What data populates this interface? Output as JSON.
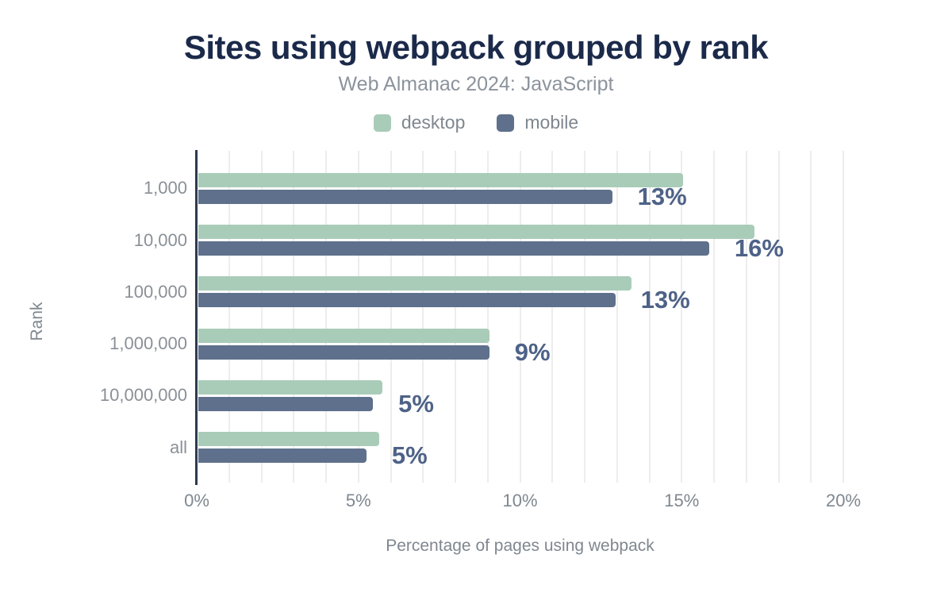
{
  "title": "Sites using webpack grouped by rank",
  "subtitle": "Web Almanac 2024: JavaScript",
  "chart_data": {
    "type": "bar",
    "orientation": "horizontal",
    "title": "Sites using webpack grouped by rank",
    "subtitle": "Web Almanac 2024: JavaScript",
    "categories": [
      "1,000",
      "10,000",
      "100,000",
      "1,000,000",
      "10,000,000",
      "all"
    ],
    "series": [
      {
        "name": "desktop",
        "color": "#a9ccb9",
        "values": [
          15.0,
          17.2,
          13.4,
          9.0,
          5.7,
          5.6
        ]
      },
      {
        "name": "mobile",
        "color": "#5e708b",
        "values": [
          12.8,
          15.8,
          12.9,
          9.0,
          5.4,
          5.2
        ]
      }
    ],
    "data_labels": [
      "13%",
      "16%",
      "13%",
      "9%",
      "5%",
      "5%"
    ],
    "data_labels_series": "mobile",
    "xlabel": "Percentage of pages using webpack",
    "ylabel": "Rank",
    "xlim": [
      0,
      20
    ],
    "x_ticks": [
      "0%",
      "5%",
      "10%",
      "15%",
      "20%"
    ],
    "x_tick_values": [
      0,
      5,
      10,
      15,
      20
    ],
    "grid": true,
    "grid_step": 1,
    "legend_position": "top"
  },
  "colors": {
    "background": "#ffffff",
    "title": "#1b2a4a",
    "subtitle": "#8b939c",
    "axis_text": "#7f878f",
    "category_text": "#8a9097",
    "axis_line": "#2e3a4e",
    "grid_line": "#ededed",
    "data_label": "#4e6287"
  }
}
